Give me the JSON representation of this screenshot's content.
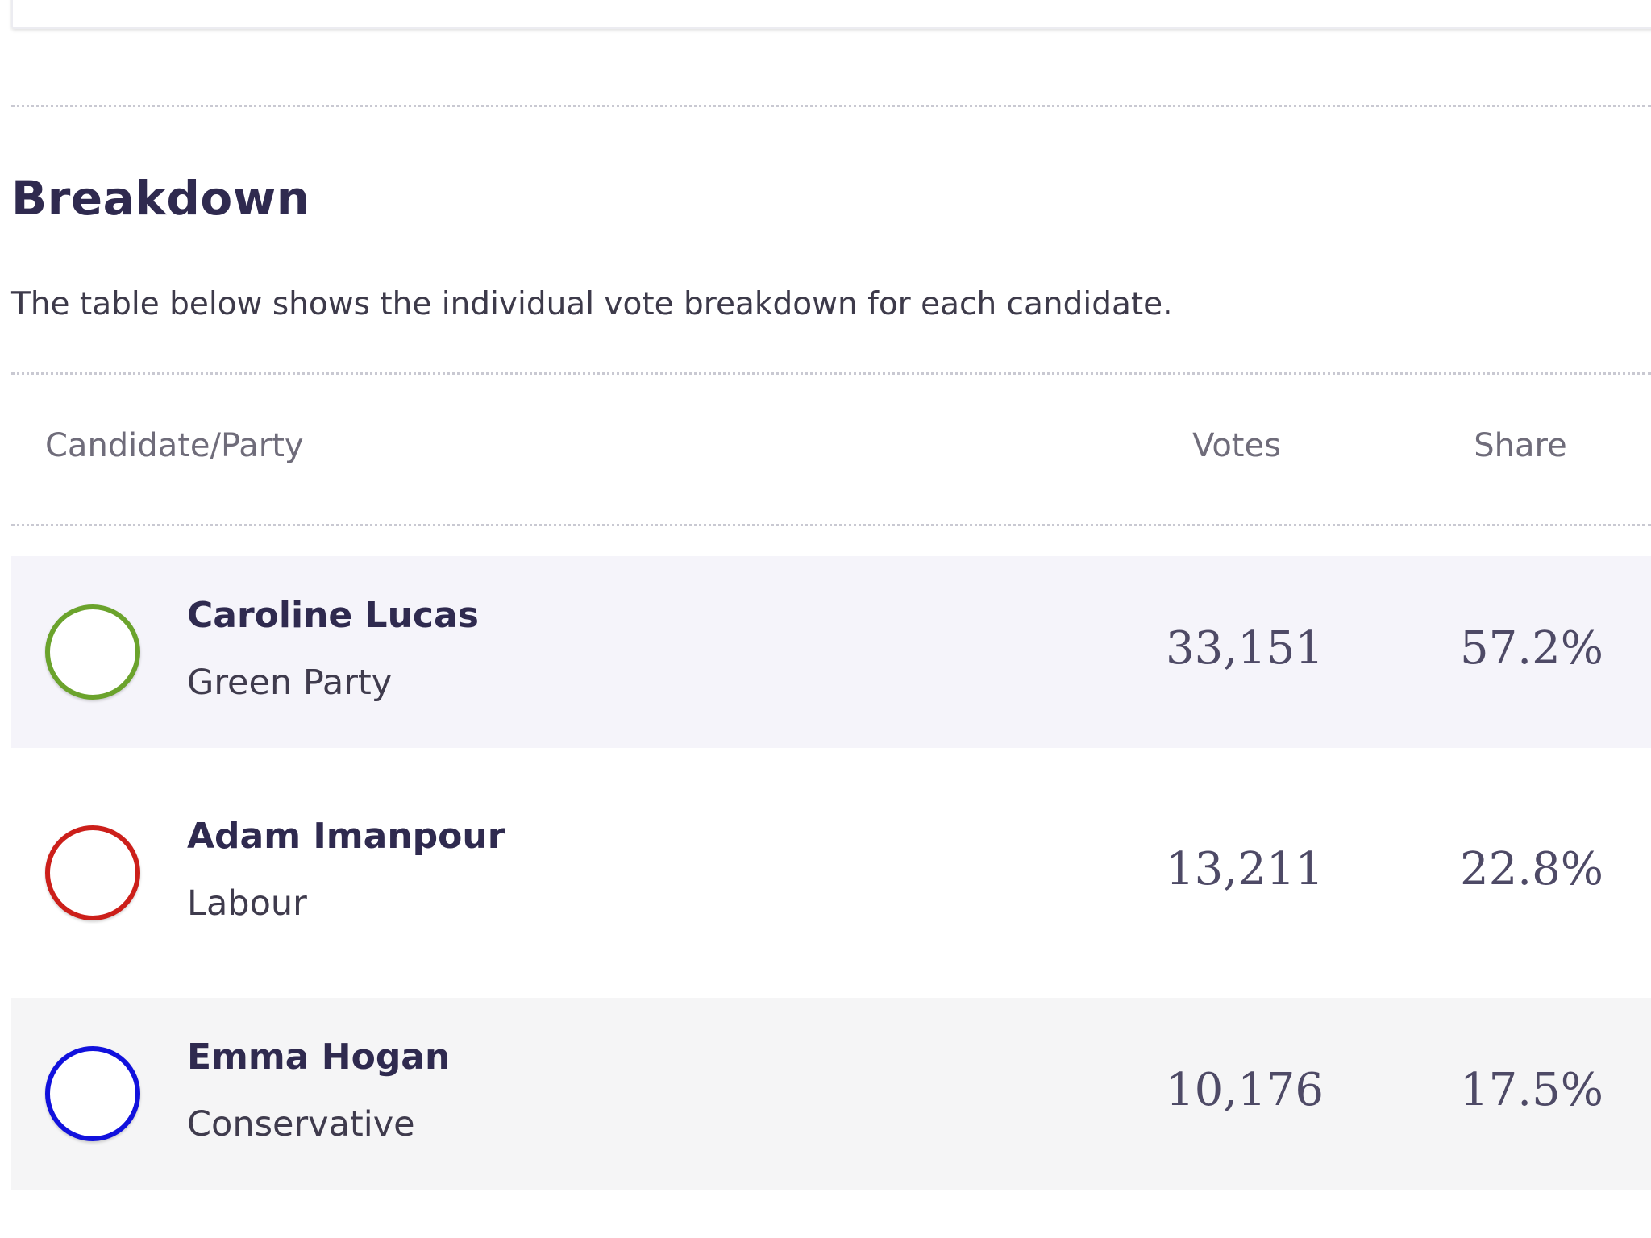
{
  "breakdown": {
    "title": "Breakdown",
    "description": "The table below shows the individual vote breakdown for each candidate.",
    "columns": {
      "candidate": "Candidate/Party",
      "votes": "Votes",
      "share": "Share"
    },
    "rows": [
      {
        "name": "Caroline Lucas",
        "party": "Green Party",
        "votes": "33,151",
        "share": "57.2%",
        "party_color": "#6ba32c",
        "row_bg": "#f5f4fa"
      },
      {
        "name": "Adam Imanpour",
        "party": "Labour",
        "votes": "13,211",
        "share": "22.8%",
        "party_color": "#cc1f1a",
        "row_bg": "#ffffff"
      },
      {
        "name": "Emma Hogan",
        "party": "Conservative",
        "votes": "10,176",
        "share": "17.5%",
        "party_color": "#1111dd",
        "row_bg": "#f5f5f6"
      }
    ]
  }
}
